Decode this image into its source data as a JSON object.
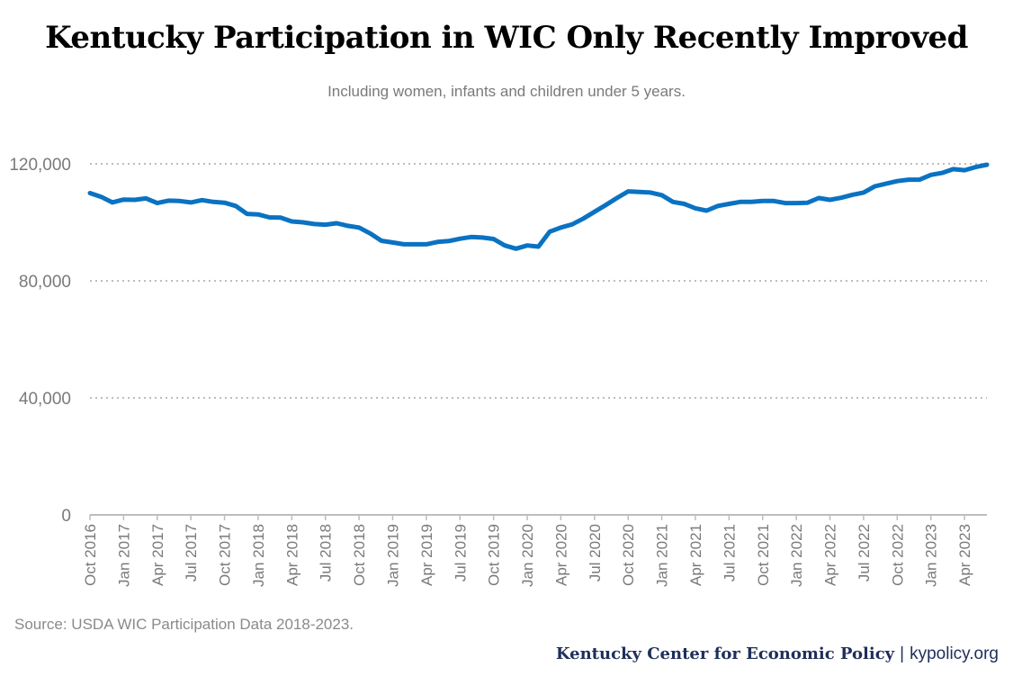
{
  "title": "Kentucky Participation in WIC Only Recently Improved",
  "subtitle": "Including women, infants and children under 5 years.",
  "source": "Source: USDA WIC Participation Data 2018-2023.",
  "footer": {
    "org": "Kentucky Center for Economic Policy",
    "separator": "|",
    "site": "kypolicy.org"
  },
  "colors": {
    "line": "#0a72c2",
    "grid": "#bdbdbd",
    "axis_text": "#7a7a7a"
  },
  "chart_data": {
    "type": "line",
    "title": "Kentucky Participation in WIC Only Recently Improved",
    "subtitle": "Including women, infants and children under 5 years.",
    "ylim": [
      0,
      120000
    ],
    "yticks": [
      0,
      40000,
      80000,
      120000
    ],
    "ytick_labels": [
      "0",
      "40,000",
      "80,000",
      "120,000"
    ],
    "grid": "horizontal dotted",
    "x_tick_labels": [
      "Oct 2016",
      "Jan 2017",
      "Apr 2017",
      "Jul 2017",
      "Oct 2017",
      "Jan 2018",
      "Apr 2018",
      "Jul 2018",
      "Oct 2018",
      "Jan 2019",
      "Apr 2019",
      "Jul 2019",
      "Oct 2019",
      "Jan 2020",
      "Apr 2020",
      "Jul 2020",
      "Oct 2020",
      "Jan 2021",
      "Apr 2021",
      "Jul 2021",
      "Oct 2021",
      "Jan 2022",
      "Apr 2022",
      "Jul 2022",
      "Oct 2022",
      "Jan 2023",
      "Apr 2023"
    ],
    "x": [
      "Oct 2016",
      "Nov 2016",
      "Dec 2016",
      "Jan 2017",
      "Feb 2017",
      "Mar 2017",
      "Apr 2017",
      "May 2017",
      "Jun 2017",
      "Jul 2017",
      "Aug 2017",
      "Sep 2017",
      "Oct 2017",
      "Nov 2017",
      "Dec 2017",
      "Jan 2018",
      "Feb 2018",
      "Mar 2018",
      "Apr 2018",
      "May 2018",
      "Jun 2018",
      "Jul 2018",
      "Aug 2018",
      "Sep 2018",
      "Oct 2018",
      "Nov 2018",
      "Dec 2018",
      "Jan 2019",
      "Feb 2019",
      "Mar 2019",
      "Apr 2019",
      "May 2019",
      "Jun 2019",
      "Jul 2019",
      "Aug 2019",
      "Sep 2019",
      "Oct 2019",
      "Nov 2019",
      "Dec 2019",
      "Jan 2020",
      "Feb 2020",
      "Mar 2020",
      "Apr 2020",
      "May 2020",
      "Jun 2020",
      "Jul 2020",
      "Aug 2020",
      "Sep 2020",
      "Oct 2020",
      "Nov 2020",
      "Dec 2020",
      "Jan 2021",
      "Feb 2021",
      "Mar 2021",
      "Apr 2021",
      "May 2021",
      "Jun 2021",
      "Jul 2021",
      "Aug 2021",
      "Sep 2021",
      "Oct 2021",
      "Nov 2021",
      "Dec 2021",
      "Jan 2022",
      "Feb 2022",
      "Mar 2022",
      "Apr 2022",
      "May 2022",
      "Jun 2022",
      "Jul 2022",
      "Aug 2022",
      "Sep 2022",
      "Oct 2022",
      "Nov 2022",
      "Dec 2022",
      "Jan 2023",
      "Feb 2023",
      "Mar 2023",
      "Apr 2023",
      "May 2023",
      "Jun 2023"
    ],
    "series": [
      {
        "values": [
          110000,
          108700,
          106800,
          107800,
          107700,
          108200,
          106600,
          107400,
          107300,
          106800,
          107600,
          107000,
          106700,
          105600,
          102900,
          102700,
          101700,
          101600,
          100300,
          100000,
          99400,
          99200,
          99700,
          98800,
          98200,
          96200,
          93700,
          93100,
          92500,
          92500,
          92500,
          93300,
          93600,
          94400,
          95000,
          94800,
          94300,
          92100,
          91000,
          92100,
          91700,
          96800,
          98200,
          99300,
          101300,
          103600,
          105900,
          108300,
          110600,
          110400,
          110200,
          109300,
          107000,
          106300,
          104800,
          104000,
          105600,
          106300,
          107000,
          107000,
          107300,
          107300,
          106600,
          106600,
          106700,
          108300,
          107700,
          108400,
          109400,
          110200,
          112300,
          113200,
          114100,
          114600,
          114600,
          116200,
          116900,
          118200,
          117800,
          118900,
          119700
        ]
      }
    ]
  }
}
